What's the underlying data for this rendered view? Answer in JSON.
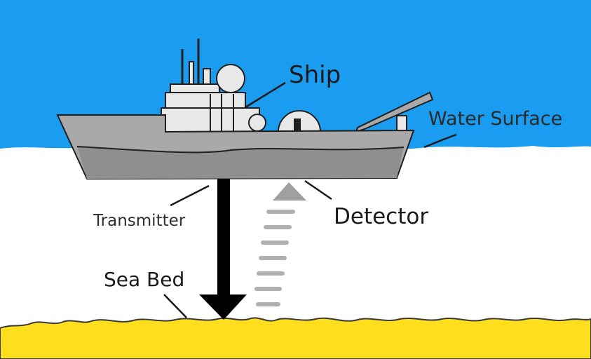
{
  "diagram": {
    "labels": {
      "ship": "Ship",
      "water_surface": "Water Surface",
      "transmitter": "Transmitter",
      "detector": "Detector",
      "sea_bed": "Sea Bed"
    },
    "colors": {
      "sky": "#1a9cf0",
      "water": "#ffffff",
      "seabed": "#ffde1e",
      "hull": "#a9a9a9",
      "hull_shade": "#8f8f8f",
      "superstructure": "#e8e8e8",
      "outline": "#1f1f1f",
      "pulse_down": "#000000",
      "echo_up": "#b0b0b0"
    }
  }
}
